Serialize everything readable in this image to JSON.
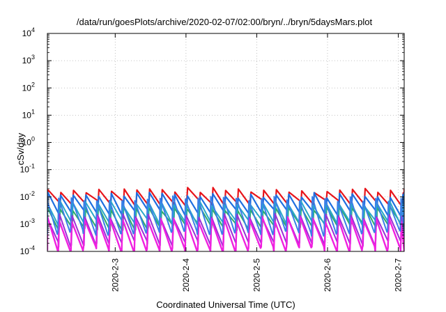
{
  "chart_data": {
    "type": "line",
    "title": "/data/run/goesPlots/archive/2020-02-07/02:00/bryn/../bryn/5daysMars.plot",
    "xlabel": "Coordinated Universal Time (UTC)",
    "ylabel": "cSv/day",
    "yscale": "log",
    "ylim": [
      0.0001,
      10000
    ],
    "y_ticks": [
      {
        "base": "10",
        "exp": "-4",
        "value": 0.0001
      },
      {
        "base": "10",
        "exp": "-3",
        "value": 0.001
      },
      {
        "base": "10",
        "exp": "-2",
        "value": 0.01
      },
      {
        "base": "10",
        "exp": "-1",
        "value": 0.1
      },
      {
        "base": "10",
        "exp": "0",
        "value": 1
      },
      {
        "base": "10",
        "exp": "1",
        "value": 10
      },
      {
        "base": "10",
        "exp": "2",
        "value": 100
      },
      {
        "base": "10",
        "exp": "3",
        "value": 1000
      },
      {
        "base": "10",
        "exp": "4",
        "value": 10000
      }
    ],
    "xlim": [
      "2020-02-02T01:00",
      "2020-02-07T02:00"
    ],
    "x_ticks": [
      {
        "label": "2020-2-3",
        "value": "2020-02-03T00:00"
      },
      {
        "label": "2020-2-4",
        "value": "2020-02-04T00:00"
      },
      {
        "label": "2020-2-5",
        "value": "2020-02-05T00:00"
      },
      {
        "label": "2020-2-6",
        "value": "2020-02-06T00:00"
      },
      {
        "label": "2020-2-7",
        "value": "2020-02-07T00:00"
      }
    ],
    "grid": true,
    "legend": "none",
    "series": [
      {
        "color": "#e8141a",
        "peak": 0.018,
        "trough": 0.006,
        "phase": 0.0,
        "width": 2.2
      },
      {
        "color": "#1e6fe0",
        "peak": 0.012,
        "trough": 0.0025,
        "phase": 0.02,
        "width": 2.2
      },
      {
        "color": "#2eaa6a",
        "peak": 0.004,
        "trough": 0.0008,
        "phase": 0.05,
        "width": 2.0
      },
      {
        "color": "#2aa8c8",
        "peak": 0.006,
        "trough": 0.0012,
        "phase": 0.08,
        "width": 2.0
      },
      {
        "color": "#9b2fd6",
        "peak": 0.002,
        "trough": 0.0002,
        "phase": 0.11,
        "width": 2.0
      },
      {
        "color": "#f020e0",
        "peak": 0.0016,
        "trough": 0.00012,
        "phase": 0.14,
        "width": 2.4
      },
      {
        "color": "#3a7fe8",
        "peak": 0.009,
        "trough": 0.0005,
        "phase": 0.17,
        "width": 2.0
      }
    ],
    "x_cycle_hours": 4.3
  }
}
